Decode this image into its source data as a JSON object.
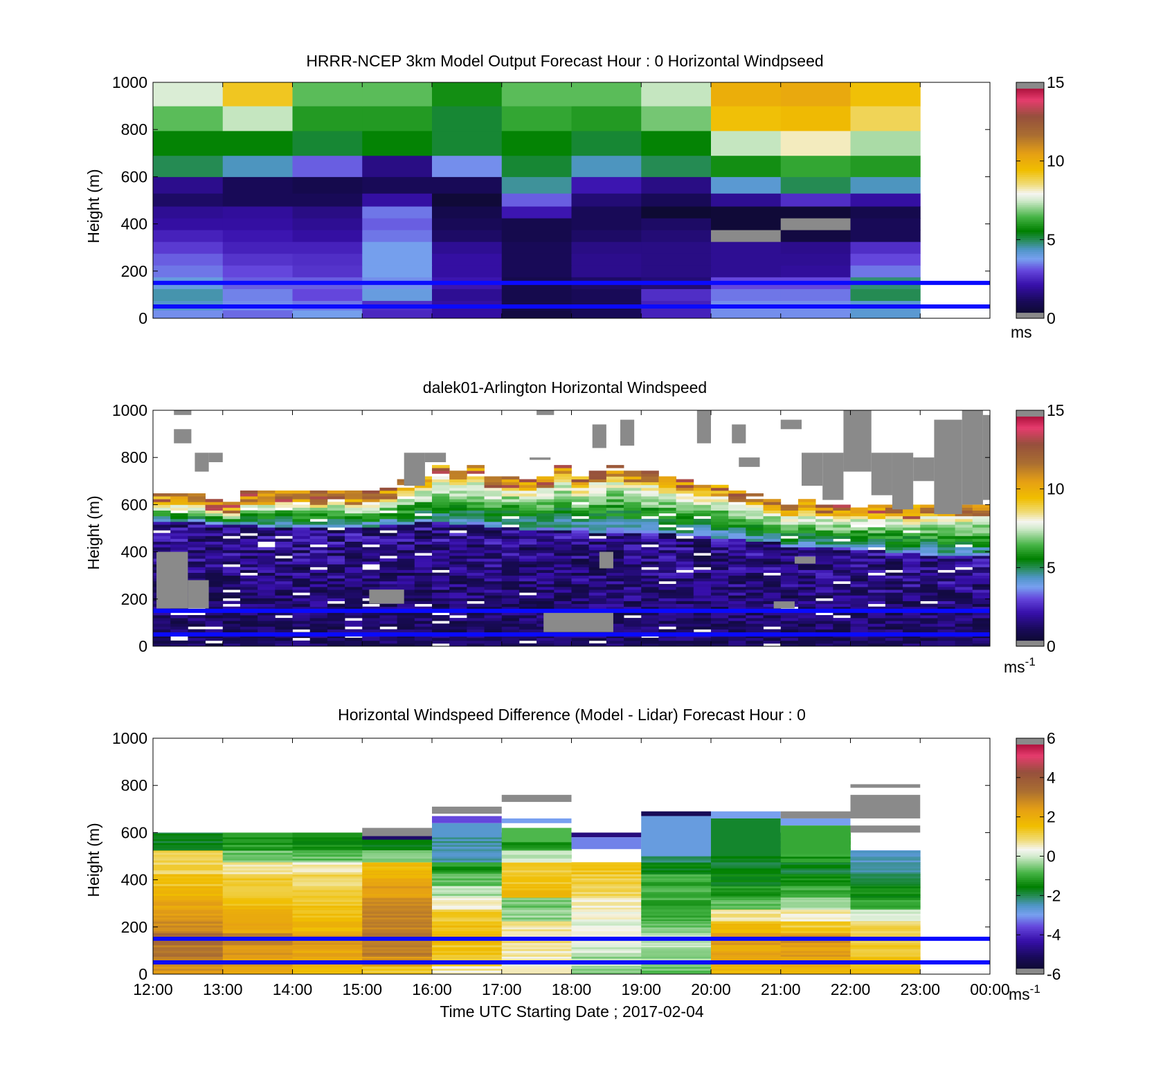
{
  "figure": {
    "xlabel": "Time UTC  Starting Date ; 2017-02-04",
    "x_ticks": [
      "12:00",
      "13:00",
      "14:00",
      "15:00",
      "16:00",
      "17:00",
      "18:00",
      "19:00",
      "20:00",
      "21:00",
      "22:00",
      "23:00",
      "00:00"
    ],
    "y_ticks": [
      "0",
      "200",
      "400",
      "600",
      "800",
      "1000"
    ],
    "ylabel": "Height (m)",
    "overlay_line_color": "#0a0aff",
    "missing_color": "#8a8a8a"
  },
  "chart_data": [
    {
      "type": "heatmap",
      "title": "HRRR-NCEP 3km Model Output   Forecast Hour : 0 Horizontal Windpseed",
      "ylabel": "Height (m)",
      "xlim": [
        12,
        24
      ],
      "ylim": [
        0,
        1000
      ],
      "colorbar": {
        "min": 0,
        "max": 15,
        "ticks": [
          "0",
          "5",
          "10",
          "15"
        ],
        "unit": "ms",
        "unit_sup": ""
      },
      "reference_lines_m": [
        50,
        150
      ],
      "time_hours": [
        12,
        13,
        14,
        15,
        16,
        17,
        18,
        19,
        20,
        21,
        22
      ],
      "height_levels_m": [
        20,
        50,
        100,
        150,
        200,
        250,
        300,
        350,
        400,
        450,
        500,
        560,
        640,
        740,
        850,
        950
      ],
      "values": [
        [
          3.6,
          3.3,
          3.8,
          2.5,
          2.0,
          0.6,
          1.0,
          2.4,
          3.6,
          3.6,
          4.2
        ],
        [
          4.3,
          3.6,
          3.4,
          2.6,
          2.0,
          0.8,
          1.0,
          2.4,
          3.6,
          3.6,
          4.2
        ],
        [
          4.5,
          3.5,
          3.0,
          4.0,
          1.8,
          0.8,
          1.0,
          2.6,
          3.4,
          3.4,
          5.0
        ],
        [
          4.0,
          3.2,
          3.2,
          3.6,
          2.2,
          0.8,
          1.2,
          1.4,
          3.0,
          3.0,
          4.8
        ],
        [
          3.4,
          3.0,
          2.7,
          3.8,
          2.0,
          1.0,
          1.7,
          1.6,
          1.8,
          1.9,
          3.4
        ],
        [
          3.2,
          2.7,
          2.6,
          3.8,
          2.0,
          1.0,
          1.7,
          1.6,
          1.8,
          1.8,
          3.0
        ],
        [
          2.8,
          2.4,
          2.4,
          3.8,
          1.8,
          1.0,
          1.6,
          1.6,
          1.8,
          1.7,
          2.6
        ],
        [
          2.4,
          2.2,
          2.0,
          3.4,
          1.2,
          0.8,
          1.2,
          1.4,
          1.0,
          0.6,
          1.0
        ],
        [
          2.0,
          2.0,
          1.8,
          3.2,
          1.0,
          0.8,
          1.0,
          1.2,
          0.4,
          0.4,
          1.0
        ],
        [
          1.8,
          1.9,
          1.6,
          3.4,
          0.8,
          2.2,
          1.0,
          0.3,
          0.4,
          0.4,
          0.8
        ],
        [
          1.2,
          1.0,
          1.0,
          2.0,
          0.4,
          3.2,
          1.4,
          1.0,
          1.8,
          2.6,
          2.0
        ],
        [
          1.7,
          1.0,
          0.8,
          1.0,
          1.0,
          4.6,
          2.2,
          1.6,
          4.2,
          5.0,
          4.4
        ],
        [
          5.0,
          4.4,
          3.2,
          1.6,
          3.6,
          5.2,
          4.4,
          5.0,
          5.8,
          6.2,
          6.0
        ],
        [
          5.6,
          5.6,
          5.2,
          5.6,
          5.2,
          5.6,
          5.2,
          5.6,
          7.4,
          8.2,
          7.2
        ],
        [
          6.6,
          7.4,
          6.0,
          6.0,
          5.2,
          6.2,
          6.0,
          6.8,
          9.4,
          9.6,
          8.8
        ],
        [
          7.6,
          9.2,
          6.6,
          6.6,
          5.8,
          6.6,
          6.6,
          7.4,
          10.0,
          10.2,
          9.4
        ]
      ],
      "missing_cells": [
        [
          8,
          7
        ],
        [
          9,
          8
        ]
      ]
    },
    {
      "type": "heatmap",
      "title": "dalek01-Arlington  Horizontal Windspeed",
      "ylabel": "Height (m)",
      "xlim": [
        12,
        24
      ],
      "ylim": [
        0,
        1000
      ],
      "colorbar": {
        "min": 0,
        "max": 15,
        "ticks": [
          "0",
          "5",
          "10",
          "15"
        ],
        "unit": "ms",
        "unit_sup": "-1"
      },
      "reference_lines_m": [
        50,
        150
      ],
      "time_start_h": 12,
      "time_step_h": 0.25,
      "column_tops_m": [
        640,
        640,
        640,
        620,
        610,
        650,
        650,
        660,
        660,
        650,
        660,
        650,
        660,
        670,
        700,
        720,
        760,
        740,
        760,
        720,
        720,
        700,
        720,
        760,
        720,
        740,
        760,
        740,
        740,
        720,
        700,
        680,
        680,
        650,
        640,
        620,
        600,
        620,
        600,
        600,
        600,
        590,
        600,
        590,
        600,
        600,
        600,
        600
      ],
      "boundary_layer_top_m": [
        520,
        520,
        520,
        510,
        510,
        510,
        500,
        500,
        500,
        500,
        500,
        500,
        500,
        510,
        510,
        520,
        520,
        510,
        510,
        500,
        500,
        490,
        490,
        490,
        490,
        480,
        480,
        480,
        470,
        470,
        460,
        460,
        450,
        450,
        440,
        440,
        420,
        420,
        410,
        410,
        400,
        400,
        390,
        390,
        380,
        380,
        380,
        380
      ],
      "speed_in_boundary_layer_ms": [
        0.5,
        3.0
      ],
      "speed_in_shear_layer_ms": [
        4.0,
        8.5
      ],
      "speed_at_top_ms": [
        9.0,
        13.5
      ],
      "missing_patches": [
        {
          "time_h": [
            12.05,
            12.5
          ],
          "height_m": [
            160,
            400
          ]
        },
        {
          "time_h": [
            12.5,
            12.8
          ],
          "height_m": [
            160,
            280
          ]
        },
        {
          "time_h": [
            15.1,
            15.6
          ],
          "height_m": [
            180,
            240
          ]
        },
        {
          "time_h": [
            17.6,
            18.6
          ],
          "height_m": [
            60,
            150
          ]
        },
        {
          "time_h": [
            18.4,
            18.6
          ],
          "height_m": [
            330,
            400
          ]
        },
        {
          "time_h": [
            20.9,
            21.2
          ],
          "height_m": [
            160,
            190
          ]
        },
        {
          "time_h": [
            21.2,
            21.5
          ],
          "height_m": [
            350,
            380
          ]
        }
      ],
      "missing_above_top": [
        {
          "time_h": [
            12.3,
            12.55
          ],
          "height_m": [
            860,
            920
          ]
        },
        {
          "time_h": [
            12.3,
            12.55
          ],
          "height_m": [
            980,
            1000
          ]
        },
        {
          "time_h": [
            12.6,
            12.8
          ],
          "height_m": [
            740,
            820
          ]
        },
        {
          "time_h": [
            12.8,
            13.0
          ],
          "height_m": [
            780,
            820
          ]
        },
        {
          "time_h": [
            15.6,
            15.9
          ],
          "height_m": [
            680,
            820
          ]
        },
        {
          "time_h": [
            15.9,
            16.2
          ],
          "height_m": [
            780,
            820
          ]
        },
        {
          "time_h": [
            17.5,
            17.75
          ],
          "height_m": [
            980,
            1000
          ]
        },
        {
          "time_h": [
            17.4,
            17.7
          ],
          "height_m": [
            790,
            800
          ]
        },
        {
          "time_h": [
            18.3,
            18.5
          ],
          "height_m": [
            840,
            940
          ]
        },
        {
          "time_h": [
            18.7,
            18.9
          ],
          "height_m": [
            850,
            960
          ]
        },
        {
          "time_h": [
            19.8,
            20.0
          ],
          "height_m": [
            860,
            1000
          ]
        },
        {
          "time_h": [
            20.3,
            20.5
          ],
          "height_m": [
            860,
            940
          ]
        },
        {
          "time_h": [
            20.4,
            20.7
          ],
          "height_m": [
            760,
            800
          ]
        },
        {
          "time_h": [
            21.0,
            21.3
          ],
          "height_m": [
            920,
            960
          ]
        },
        {
          "time_h": [
            21.3,
            21.6
          ],
          "height_m": [
            680,
            820
          ]
        },
        {
          "time_h": [
            21.6,
            21.9
          ],
          "height_m": [
            620,
            820
          ]
        },
        {
          "time_h": [
            21.9,
            22.3
          ],
          "height_m": [
            740,
            1000
          ]
        },
        {
          "time_h": [
            22.3,
            22.6
          ],
          "height_m": [
            640,
            820
          ]
        },
        {
          "time_h": [
            22.6,
            22.9
          ],
          "height_m": [
            580,
            820
          ]
        },
        {
          "time_h": [
            22.9,
            23.2
          ],
          "height_m": [
            700,
            800
          ]
        },
        {
          "time_h": [
            23.2,
            23.6
          ],
          "height_m": [
            560,
            960
          ]
        },
        {
          "time_h": [
            23.6,
            23.9
          ],
          "height_m": [
            600,
            1000
          ]
        },
        {
          "time_h": [
            23.9,
            24.0
          ],
          "height_m": [
            620,
            980
          ]
        }
      ]
    },
    {
      "type": "heatmap",
      "title": "Horizontal Windspeed Difference (Model - Lidar) Forecast Hour : 0",
      "ylabel": "Height (m)",
      "xlabel": "Time UTC  Starting Date ; 2017-02-04",
      "xlim": [
        12,
        24
      ],
      "ylim": [
        0,
        1000
      ],
      "colorbar": {
        "min": -6,
        "max": 6,
        "ticks": [
          "-6",
          "-4",
          "-2",
          "0",
          "2",
          "4",
          "6"
        ],
        "unit": "ms",
        "unit_sup": "-1"
      },
      "reference_lines_m": [
        50,
        150
      ],
      "time_hours": [
        12,
        13,
        14,
        15,
        16,
        17,
        18,
        19,
        20,
        21,
        22
      ],
      "column_tops_m": [
        570,
        570,
        570,
        620,
        700,
        750,
        600,
        680,
        680,
        680,
        800
      ],
      "height_levels_m": [
        20,
        50,
        100,
        150,
        200,
        250,
        300,
        350,
        400,
        450,
        500,
        550
      ],
      "values": [
        [
          2.6,
          2.2,
          1.6,
          1.4,
          0.6,
          0.4,
          -0.3,
          -0.6,
          1.8,
          2.0,
          1.6
        ],
        [
          3.0,
          2.4,
          2.0,
          2.6,
          1.2,
          0.4,
          -0.3,
          -0.4,
          2.0,
          2.0,
          1.6
        ],
        [
          3.2,
          2.6,
          2.2,
          3.0,
          1.4,
          0.6,
          0.0,
          -0.2,
          2.2,
          2.4,
          1.4
        ],
        [
          3.4,
          2.8,
          2.4,
          3.2,
          1.6,
          0.8,
          0.2,
          -0.2,
          2.4,
          2.6,
          1.2
        ],
        [
          2.8,
          2.2,
          1.8,
          3.0,
          1.6,
          0.6,
          0.2,
          -0.6,
          1.6,
          1.2,
          1.0
        ],
        [
          2.6,
          2.0,
          1.6,
          3.0,
          1.2,
          -0.4,
          0.4,
          -1.0,
          0.8,
          0.6,
          0.2
        ],
        [
          2.2,
          1.6,
          1.4,
          2.8,
          0.6,
          -0.6,
          0.6,
          -1.0,
          -0.8,
          -0.2,
          -1.0
        ],
        [
          1.8,
          1.4,
          1.2,
          2.4,
          -0.2,
          1.6,
          1.0,
          -0.8,
          -1.2,
          -1.0,
          -1.4
        ],
        [
          1.4,
          1.4,
          1.0,
          2.0,
          -0.6,
          1.4,
          1.2,
          -1.0,
          -1.6,
          -1.4,
          -1.8
        ],
        [
          1.0,
          0.8,
          0.6,
          1.6,
          -1.2,
          1.2,
          1.4,
          -1.6,
          -1.8,
          -1.8,
          -2.2
        ],
        [
          1.2,
          -0.6,
          -0.6,
          -0.4,
          -2.4,
          0.0,
          null,
          -2.2,
          -1.6,
          -1.2,
          -2.6
        ],
        [
          -1.8,
          -1.2,
          -1.4,
          -1.6,
          -2.4,
          -1.2,
          null,
          -2.6,
          -2.2,
          -1.4,
          null
        ]
      ],
      "upper_bands": [
        {
          "time_h": [
            15,
            16
          ],
          "height_m": [
            580,
            620
          ],
          "value": "missing"
        },
        {
          "time_h": [
            15,
            16
          ],
          "height_m": [
            570,
            585
          ],
          "value": -5.0
        },
        {
          "time_h": [
            16,
            17
          ],
          "height_m": [
            680,
            710
          ],
          "value": "missing"
        },
        {
          "time_h": [
            16,
            17
          ],
          "height_m": [
            640,
            670
          ],
          "value": -3.6
        },
        {
          "time_h": [
            16,
            17
          ],
          "height_m": [
            580,
            640
          ],
          "value": -2.6
        },
        {
          "time_h": [
            17,
            18
          ],
          "height_m": [
            730,
            760
          ],
          "value": "missing"
        },
        {
          "time_h": [
            17,
            18
          ],
          "height_m": [
            640,
            660
          ],
          "value": -3.0
        },
        {
          "time_h": [
            17,
            18
          ],
          "height_m": [
            560,
            620
          ],
          "value": -0.8
        },
        {
          "time_h": [
            18,
            19
          ],
          "height_m": [
            580,
            600
          ],
          "value": -4.8
        },
        {
          "time_h": [
            18,
            19
          ],
          "height_m": [
            530,
            580
          ],
          "value": -3.2
        },
        {
          "time_h": [
            19,
            20
          ],
          "height_m": [
            670,
            690
          ],
          "value": -5.2
        },
        {
          "time_h": [
            19,
            20
          ],
          "height_m": [
            500,
            670
          ],
          "value": -2.8
        },
        {
          "time_h": [
            20,
            21
          ],
          "height_m": [
            660,
            690
          ],
          "value": -3.0
        },
        {
          "time_h": [
            20,
            21
          ],
          "height_m": [
            500,
            660
          ],
          "value": -1.8
        },
        {
          "time_h": [
            21,
            22
          ],
          "height_m": [
            660,
            690
          ],
          "value": "missing"
        },
        {
          "time_h": [
            21,
            22
          ],
          "height_m": [
            630,
            660
          ],
          "value": -3.0
        },
        {
          "time_h": [
            21,
            22
          ],
          "height_m": [
            510,
            630
          ],
          "value": -1.0
        },
        {
          "time_h": [
            22,
            23
          ],
          "height_m": [
            790,
            805
          ],
          "value": "missing"
        },
        {
          "time_h": [
            22,
            23
          ],
          "height_m": [
            660,
            760
          ],
          "value": "missing"
        },
        {
          "time_h": [
            22,
            23
          ],
          "height_m": [
            600,
            630
          ],
          "value": "missing"
        }
      ]
    }
  ]
}
